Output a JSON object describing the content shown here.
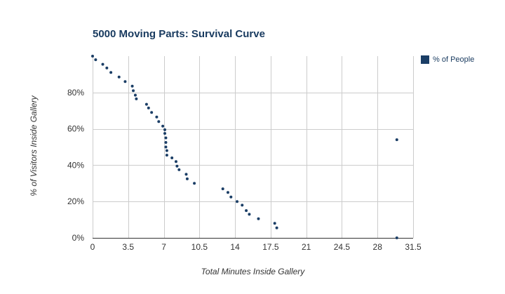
{
  "chart_data": {
    "type": "scatter",
    "title": "5000 Moving Parts: Survival Curve",
    "xlabel": "Total Minutes Inside Gallery",
    "ylabel": "% of Visitors Inside Gallery",
    "x_ticks": [
      "0",
      "3.5",
      "7",
      "10.5",
      "14",
      "17.5",
      "21",
      "24.5",
      "28",
      "31.5"
    ],
    "x_tick_values": [
      0,
      3.5,
      7,
      10.5,
      14,
      17.5,
      21,
      24.5,
      28,
      31.5
    ],
    "y_ticks": [
      "0%",
      "20%",
      "40%",
      "60%",
      "80%"
    ],
    "y_tick_values": [
      0,
      20,
      40,
      60,
      80
    ],
    "xlim": [
      0,
      31.5
    ],
    "ylim": [
      0,
      100
    ],
    "grid": true,
    "legend_position": "right",
    "series": [
      {
        "name": "% of People",
        "color": "#1b3e66",
        "points": [
          [
            0,
            100
          ],
          [
            0.3,
            98
          ],
          [
            1.0,
            95.5
          ],
          [
            1.4,
            93.5
          ],
          [
            1.8,
            91
          ],
          [
            2.6,
            88.5
          ],
          [
            3.2,
            86
          ],
          [
            3.9,
            83.5
          ],
          [
            4.0,
            81
          ],
          [
            4.2,
            78.5
          ],
          [
            4.3,
            76.5
          ],
          [
            5.3,
            73.5
          ],
          [
            5.5,
            71.5
          ],
          [
            5.8,
            69
          ],
          [
            6.3,
            66.5
          ],
          [
            6.5,
            64
          ],
          [
            6.9,
            61.5
          ],
          [
            7.1,
            59.5
          ],
          [
            7.1,
            57.5
          ],
          [
            7.2,
            55
          ],
          [
            7.2,
            52.5
          ],
          [
            7.2,
            50
          ],
          [
            7.3,
            48
          ],
          [
            7.3,
            45.5
          ],
          [
            7.8,
            44
          ],
          [
            8.2,
            42
          ],
          [
            8.3,
            39.5
          ],
          [
            8.5,
            37.5
          ],
          [
            9.2,
            35
          ],
          [
            9.3,
            32.5
          ],
          [
            10.0,
            30
          ],
          [
            12.8,
            27
          ],
          [
            13.3,
            25
          ],
          [
            13.6,
            22.5
          ],
          [
            14.2,
            20
          ],
          [
            14.7,
            18
          ],
          [
            15.1,
            15
          ],
          [
            15.4,
            13
          ],
          [
            16.3,
            10.5
          ],
          [
            17.9,
            8
          ],
          [
            18.1,
            5.5
          ],
          [
            29.9,
            54
          ],
          [
            29.9,
            0
          ]
        ]
      }
    ]
  }
}
